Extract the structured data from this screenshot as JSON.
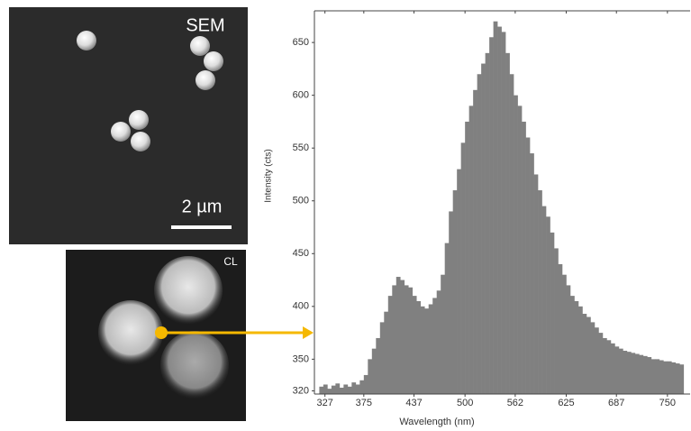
{
  "images": {
    "sem_label": "SEM",
    "scale_bar": "2 µm",
    "cl_label": "CL"
  },
  "chart_data": {
    "type": "histogram",
    "xlabel": "Wavelength (nm)",
    "ylabel": "Intensity (cts)",
    "color": "#808080",
    "bins": [
      320,
      325,
      330,
      335,
      340,
      345,
      350,
      355,
      360,
      365,
      370,
      375,
      380,
      385,
      390,
      395,
      400,
      405,
      410,
      415,
      420,
      425,
      430,
      435,
      440,
      445,
      450,
      455,
      460,
      465,
      470,
      475,
      480,
      485,
      490,
      495,
      500,
      505,
      510,
      515,
      520,
      525,
      530,
      535,
      540,
      545,
      550,
      555,
      560,
      565,
      570,
      575,
      580,
      585,
      590,
      595,
      600,
      605,
      610,
      615,
      620,
      625,
      630,
      635,
      640,
      645,
      650,
      655,
      660,
      665,
      670,
      675,
      680,
      685,
      690,
      695,
      700,
      705,
      710,
      715,
      720,
      725,
      730,
      735,
      740,
      745,
      750,
      755,
      760,
      765,
      770
    ],
    "values": [
      324,
      326,
      322,
      325,
      327,
      323,
      326,
      324,
      328,
      326,
      330,
      335,
      350,
      360,
      370,
      385,
      395,
      410,
      420,
      428,
      425,
      420,
      418,
      410,
      405,
      400,
      398,
      402,
      408,
      415,
      430,
      460,
      490,
      510,
      530,
      555,
      575,
      590,
      605,
      620,
      630,
      640,
      655,
      670,
      665,
      660,
      640,
      620,
      600,
      590,
      575,
      560,
      545,
      525,
      510,
      495,
      485,
      470,
      455,
      440,
      430,
      420,
      410,
      405,
      400,
      393,
      390,
      385,
      380,
      375,
      370,
      368,
      365,
      362,
      360,
      358,
      357,
      356,
      355,
      354,
      353,
      352,
      350,
      350,
      349,
      348,
      348,
      347,
      346,
      345
    ],
    "xlim": [
      314,
      778
    ],
    "ylim": [
      317,
      680
    ],
    "xticks": [
      327,
      375,
      437,
      500,
      562,
      625,
      687,
      750
    ],
    "yticks": [
      320,
      350,
      400,
      450,
      500,
      550,
      600,
      650
    ]
  }
}
